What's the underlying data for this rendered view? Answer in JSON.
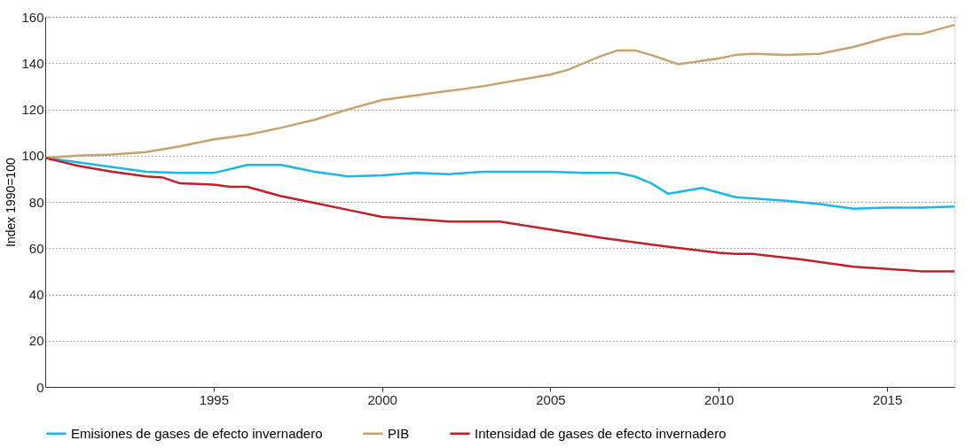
{
  "chart_data": {
    "type": "line",
    "ylabel": "Index 1990=100",
    "xlim": [
      1990,
      2017
    ],
    "xticks": [
      1995,
      2000,
      2005,
      2010,
      2015
    ],
    "ylim": [
      0,
      160
    ],
    "yticks": [
      0,
      20,
      40,
      60,
      80,
      100,
      120,
      140,
      160
    ],
    "grid": "y",
    "legend": "bottom",
    "marker": "none",
    "line_style": "solid",
    "series": [
      {
        "name": "Emisiones de gases de efecto invernadero",
        "color": "#1ab7ea",
        "x": [
          1990,
          1991,
          1992,
          1993,
          1994,
          1995,
          1996,
          1997,
          1998,
          1999,
          2000,
          2001,
          2002,
          2003,
          2004,
          2005,
          2006,
          2007,
          2007.5,
          2008,
          2008.5,
          2009.5,
          2010.5,
          2012,
          2013,
          2014,
          2015,
          2016,
          2017
        ],
        "values": [
          99,
          97,
          95,
          93,
          92.5,
          92.5,
          96,
          96,
          93,
          91,
          91.5,
          92.5,
          92,
          93,
          93,
          93,
          92.5,
          92.5,
          91,
          88,
          83.5,
          86,
          82,
          80.5,
          79,
          77,
          77.5,
          77.5,
          78
        ]
      },
      {
        "name": "PIB",
        "color": "#c9a26b",
        "x": [
          1990,
          1991,
          1992,
          1993,
          1994,
          1995,
          1996,
          1997,
          1998,
          1999,
          2000,
          2001,
          2002,
          2003,
          2004,
          2005,
          2005.5,
          2006.5,
          2007,
          2007.5,
          2008,
          2008.8,
          2010,
          2010.5,
          2011,
          2012,
          2013,
          2014,
          2015,
          2015.5,
          2016,
          2017
        ],
        "values": [
          99,
          100,
          100.5,
          101.5,
          104,
          107,
          109,
          112,
          115.5,
          120,
          124,
          126,
          128,
          130,
          132.5,
          135,
          137,
          143,
          145.5,
          145.5,
          143.5,
          139.5,
          142,
          143.5,
          144,
          143.5,
          144,
          147,
          151,
          152.5,
          152.5,
          156.5
        ]
      },
      {
        "name": "Intensidad de gases de efecto invernadero",
        "color": "#c0202a",
        "x": [
          1990,
          1991,
          1992,
          1993,
          1993.5,
          1994,
          1995,
          1995.5,
          1996,
          1997,
          1998,
          1999,
          2000,
          2001,
          2002,
          2003.5,
          2005,
          2006.5,
          2008,
          2010,
          2010.5,
          2011,
          2012.5,
          2014,
          2015,
          2016,
          2017
        ],
        "values": [
          99,
          95.5,
          93,
          91,
          90.5,
          88,
          87.5,
          86.5,
          86.5,
          82.5,
          79.5,
          76.5,
          73.5,
          72.5,
          71.5,
          71.5,
          68,
          64.5,
          61.5,
          58,
          57.5,
          57.5,
          55,
          52,
          51,
          50,
          50
        ]
      }
    ]
  }
}
